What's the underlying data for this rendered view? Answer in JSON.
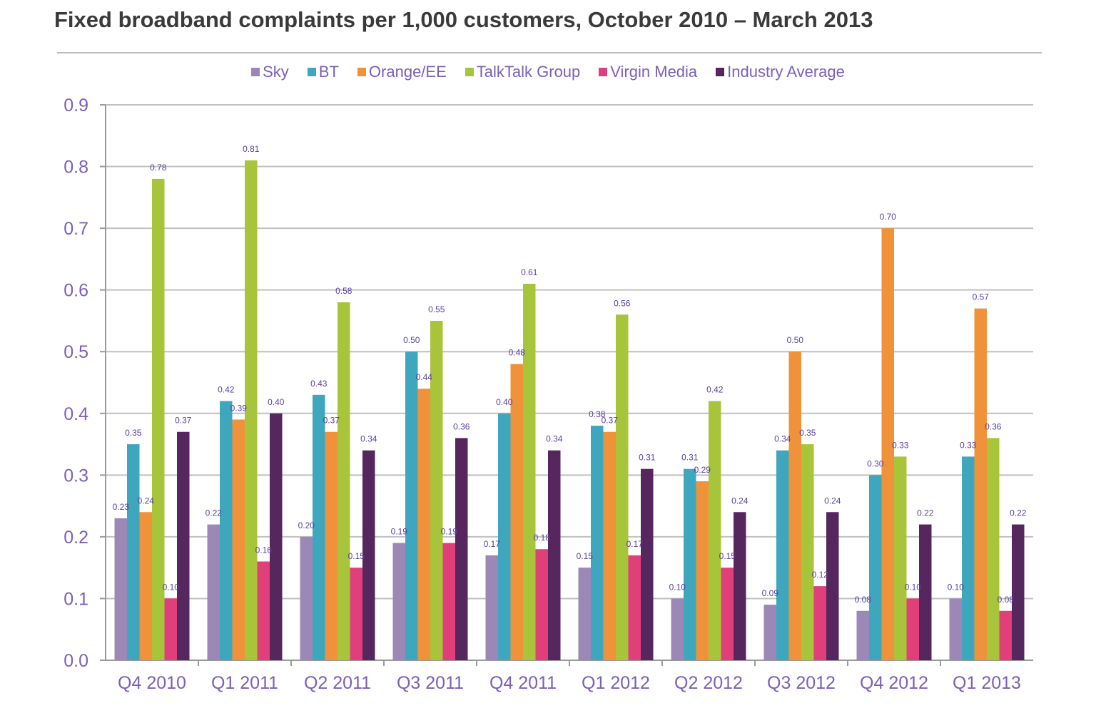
{
  "chart_data": {
    "type": "bar",
    "title": "Fixed broadband complaints per 1,000 customers, October 2010 – March 2013",
    "xlabel": "",
    "ylabel": "",
    "ylim": [
      0,
      0.9
    ],
    "yticks": [
      "0.0",
      "0.1",
      "0.2",
      "0.3",
      "0.4",
      "0.5",
      "0.6",
      "0.7",
      "0.8",
      "0.9"
    ],
    "grid": true,
    "legend_position": "top",
    "categories": [
      "Q4 2010",
      "Q1 2011",
      "Q2 2011",
      "Q3 2011",
      "Q4 2011",
      "Q1 2012",
      "Q2 2012",
      "Q3 2012",
      "Q4 2012",
      "Q1 2013"
    ],
    "series": [
      {
        "name": "Sky",
        "color": "#9b88b7",
        "values": [
          0.23,
          0.22,
          0.2,
          0.19,
          0.17,
          0.15,
          0.1,
          0.09,
          0.08,
          0.1
        ],
        "labels": [
          "0.23",
          "0.22",
          "0.20",
          "0.19",
          "0.17",
          "0.15",
          "0.10",
          "0.09",
          "0.08",
          "0.10"
        ]
      },
      {
        "name": "BT",
        "color": "#3fa7bd",
        "values": [
          0.35,
          0.42,
          0.43,
          0.5,
          0.4,
          0.38,
          0.31,
          0.34,
          0.3,
          0.33
        ],
        "labels": [
          "0.35",
          "0.42",
          "0.43",
          "0.50",
          "0.40",
          "0.38",
          "0.31",
          "0.34",
          "0.30",
          "0.33"
        ]
      },
      {
        "name": "Orange/EE",
        "color": "#f0923a",
        "values": [
          0.24,
          0.39,
          0.37,
          0.44,
          0.48,
          0.37,
          0.29,
          0.5,
          0.7,
          0.57
        ],
        "labels": [
          "0.24",
          "0.39",
          "0.37",
          "0.44",
          "0.48",
          "0.37",
          "0.29",
          "0.50",
          "0.70",
          "0.57"
        ]
      },
      {
        "name": "TalkTalk  Group",
        "color": "#a8c43a",
        "values": [
          0.78,
          0.81,
          0.58,
          0.55,
          0.61,
          0.56,
          0.42,
          0.35,
          0.33,
          0.36
        ],
        "labels": [
          "0.78",
          "0.81",
          "0.58",
          "0.55",
          "0.61",
          "0.56",
          "0.42",
          "0.35",
          "0.33",
          "0.36"
        ]
      },
      {
        "name": "Virgin Media",
        "color": "#e03f7c",
        "values": [
          0.1,
          0.16,
          0.15,
          0.19,
          0.18,
          0.17,
          0.15,
          0.12,
          0.1,
          0.08
        ],
        "labels": [
          "0.10",
          "0.16",
          "0.15",
          "0.19",
          "0.18",
          "0.17",
          "0.15",
          "0.12",
          "0.10",
          "0.08"
        ]
      },
      {
        "name": "Industry Average",
        "color": "#55275e",
        "values": [
          0.37,
          0.4,
          0.34,
          0.36,
          0.34,
          0.31,
          0.24,
          0.24,
          0.22,
          0.22
        ],
        "labels": [
          "0.37",
          "0.40",
          "0.34",
          "0.36",
          "0.34",
          "0.31",
          "0.24",
          "0.24",
          "0.22",
          "0.22"
        ]
      }
    ]
  },
  "colors": {
    "axis_text": "#7b5fb8",
    "data_label": "#5a3fa0",
    "grid": "#c0c0c0",
    "title": "#3a3a3a"
  }
}
